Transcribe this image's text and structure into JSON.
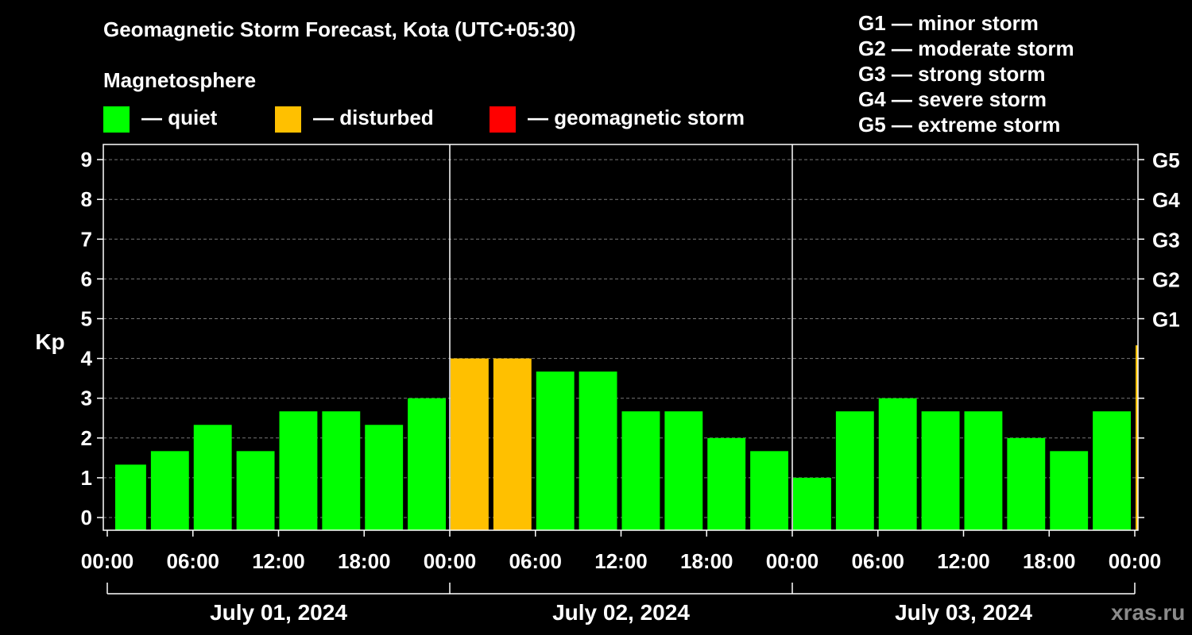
{
  "title": "Geomagnetic Storm Forecast, Kota (UTC+05:30)",
  "magnetosphere_label": "Magnetosphere",
  "legend": [
    {
      "label": "— quiet",
      "color": "#00ff00"
    },
    {
      "label": "— disturbed",
      "color": "#ffc000"
    },
    {
      "label": "— geomagnetic storm",
      "color": "#ff0000"
    }
  ],
  "g_scale": [
    "G1 — minor storm",
    "G2 — moderate storm",
    "G3 — strong storm",
    "G4 — severe storm",
    "G5 — extreme storm"
  ],
  "brand": "xras.ru",
  "chart_data": {
    "type": "bar",
    "ylabel": "Kp",
    "ylim": [
      0,
      9
    ],
    "yticks": [
      "0",
      "1",
      "2",
      "3",
      "4",
      "5",
      "6",
      "7",
      "8",
      "9"
    ],
    "right_labels": [
      {
        "kp": 5,
        "label": "G1"
      },
      {
        "kp": 6,
        "label": "G2"
      },
      {
        "kp": 7,
        "label": "G3"
      },
      {
        "kp": 8,
        "label": "G4"
      },
      {
        "kp": 9,
        "label": "G5"
      }
    ],
    "xtick_labels": [
      "00:00",
      "06:00",
      "12:00",
      "18:00",
      "00:00",
      "06:00",
      "12:00",
      "18:00",
      "00:00",
      "06:00",
      "12:00",
      "18:00",
      "00:00"
    ],
    "days": [
      "July 01, 2024",
      "July 02, 2024",
      "July 03, 2024"
    ],
    "grid": "dashed horizontal at integer Kp",
    "bars": [
      {
        "start_hour": 0.5,
        "end_hour": 3,
        "kp": 1.33,
        "status": "quiet"
      },
      {
        "start_hour": 3,
        "end_hour": 6,
        "kp": 1.67,
        "status": "quiet"
      },
      {
        "start_hour": 6,
        "end_hour": 9,
        "kp": 2.33,
        "status": "quiet"
      },
      {
        "start_hour": 9,
        "end_hour": 12,
        "kp": 1.67,
        "status": "quiet"
      },
      {
        "start_hour": 12,
        "end_hour": 15,
        "kp": 2.67,
        "status": "quiet"
      },
      {
        "start_hour": 15,
        "end_hour": 18,
        "kp": 2.67,
        "status": "quiet"
      },
      {
        "start_hour": 18,
        "end_hour": 21,
        "kp": 2.33,
        "status": "quiet"
      },
      {
        "start_hour": 21,
        "end_hour": 24,
        "kp": 3.0,
        "status": "quiet"
      },
      {
        "start_hour": 24,
        "end_hour": 27,
        "kp": 4.0,
        "status": "disturbed"
      },
      {
        "start_hour": 27,
        "end_hour": 30,
        "kp": 4.0,
        "status": "disturbed"
      },
      {
        "start_hour": 30,
        "end_hour": 33,
        "kp": 3.67,
        "status": "quiet"
      },
      {
        "start_hour": 33,
        "end_hour": 36,
        "kp": 3.67,
        "status": "quiet"
      },
      {
        "start_hour": 36,
        "end_hour": 39,
        "kp": 2.67,
        "status": "quiet"
      },
      {
        "start_hour": 39,
        "end_hour": 42,
        "kp": 2.67,
        "status": "quiet"
      },
      {
        "start_hour": 42,
        "end_hour": 45,
        "kp": 2.0,
        "status": "quiet"
      },
      {
        "start_hour": 45,
        "end_hour": 48,
        "kp": 1.67,
        "status": "quiet"
      },
      {
        "start_hour": 48,
        "end_hour": 51,
        "kp": 1.0,
        "status": "quiet"
      },
      {
        "start_hour": 51,
        "end_hour": 54,
        "kp": 2.67,
        "status": "quiet"
      },
      {
        "start_hour": 54,
        "end_hour": 57,
        "kp": 3.0,
        "status": "quiet"
      },
      {
        "start_hour": 57,
        "end_hour": 60,
        "kp": 2.67,
        "status": "quiet"
      },
      {
        "start_hour": 60,
        "end_hour": 63,
        "kp": 2.67,
        "status": "quiet"
      },
      {
        "start_hour": 63,
        "end_hour": 66,
        "kp": 2.0,
        "status": "quiet"
      },
      {
        "start_hour": 66,
        "end_hour": 69,
        "kp": 1.67,
        "status": "quiet"
      },
      {
        "start_hour": 69,
        "end_hour": 72,
        "kp": 2.67,
        "status": "quiet"
      },
      {
        "start_hour": 72,
        "end_hour": 72.5,
        "kp": 4.33,
        "status": "disturbed"
      }
    ]
  }
}
